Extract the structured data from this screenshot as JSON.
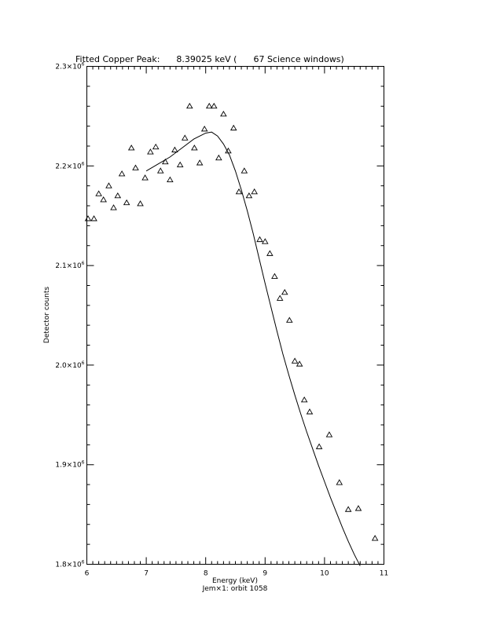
{
  "chart_data": {
    "type": "scatter",
    "title": "Fitted Copper Peak:      8.39025 keV (      67 Science windows)",
    "xlabel": "Energy (keV)",
    "ylabel": "Detector counts",
    "subtitle": "Jem×1: orbit 1058",
    "xlim": [
      6,
      11
    ],
    "ylim": [
      1800000,
      2300000
    ],
    "x_ticks": [
      {
        "value": 6,
        "label": "6"
      },
      {
        "value": 7,
        "label": "7"
      },
      {
        "value": 8,
        "label": "8"
      },
      {
        "value": 9,
        "label": "9"
      },
      {
        "value": 10,
        "label": "10"
      },
      {
        "value": 11,
        "label": "11"
      }
    ],
    "y_ticks": [
      {
        "value": 1800000,
        "mantissa": "1.8×10",
        "exponent": "6"
      },
      {
        "value": 1900000,
        "mantissa": "1.9×10",
        "exponent": "6"
      },
      {
        "value": 2000000,
        "mantissa": "2.0×10",
        "exponent": "6"
      },
      {
        "value": 2100000,
        "mantissa": "2.1×10",
        "exponent": "6"
      },
      {
        "value": 2200000,
        "mantissa": "2.2×10",
        "exponent": "6"
      },
      {
        "value": 2300000,
        "mantissa": "2.3×10",
        "exponent": "6"
      }
    ],
    "grid": false,
    "series": [
      {
        "marker": "triangle",
        "points": [
          [
            6.02,
            2147000
          ],
          [
            6.12,
            2147000
          ],
          [
            6.2,
            2172000
          ],
          [
            6.28,
            2166000
          ],
          [
            6.37,
            2180000
          ],
          [
            6.45,
            2158000
          ],
          [
            6.52,
            2170000
          ],
          [
            6.59,
            2192000
          ],
          [
            6.67,
            2163000
          ],
          [
            6.75,
            2218000
          ],
          [
            6.82,
            2198000
          ],
          [
            6.9,
            2162000
          ],
          [
            6.98,
            2188000
          ],
          [
            7.07,
            2214000
          ],
          [
            7.16,
            2219000
          ],
          [
            7.24,
            2195000
          ],
          [
            7.32,
            2204000
          ],
          [
            7.4,
            2186000
          ],
          [
            7.48,
            2216000
          ],
          [
            7.57,
            2201000
          ],
          [
            7.65,
            2228000
          ],
          [
            7.73,
            2260000
          ],
          [
            7.81,
            2218000
          ],
          [
            7.9,
            2203000
          ],
          [
            7.98,
            2237000
          ],
          [
            8.06,
            2260000
          ],
          [
            8.14,
            2260000
          ],
          [
            8.22,
            2208000
          ],
          [
            8.3,
            2252000
          ],
          [
            8.38,
            2215000
          ],
          [
            8.47,
            2238000
          ],
          [
            8.56,
            2174000
          ],
          [
            8.65,
            2195000
          ],
          [
            8.73,
            2170000
          ],
          [
            8.82,
            2174000
          ],
          [
            8.91,
            2126000
          ],
          [
            9.0,
            2124000
          ],
          [
            9.08,
            2112000
          ],
          [
            9.16,
            2089000
          ],
          [
            9.25,
            2067000
          ],
          [
            9.33,
            2073000
          ],
          [
            9.41,
            2045000
          ],
          [
            9.5,
            2004000
          ],
          [
            9.58,
            2001000
          ],
          [
            9.66,
            1965000
          ],
          [
            9.75,
            1953000
          ],
          [
            9.91,
            1918000
          ],
          [
            10.08,
            1930000
          ],
          [
            10.25,
            1882000
          ],
          [
            10.4,
            1855000
          ],
          [
            10.57,
            1856000
          ],
          [
            10.85,
            1826000
          ]
        ]
      },
      {
        "marker": "line",
        "points": [
          [
            7.0,
            2195000
          ],
          [
            7.2,
            2202000
          ],
          [
            7.4,
            2209000
          ],
          [
            7.6,
            2218000
          ],
          [
            7.8,
            2227000
          ],
          [
            8.0,
            2233000
          ],
          [
            8.1,
            2234000
          ],
          [
            8.2,
            2230000
          ],
          [
            8.3,
            2222000
          ],
          [
            8.4,
            2211000
          ],
          [
            8.5,
            2195000
          ],
          [
            8.6,
            2176000
          ],
          [
            8.7,
            2155000
          ],
          [
            8.8,
            2132000
          ],
          [
            8.9,
            2107000
          ],
          [
            9.0,
            2082000
          ],
          [
            9.1,
            2058000
          ],
          [
            9.2,
            2034000
          ],
          [
            9.3,
            2011000
          ],
          [
            9.4,
            1990000
          ],
          [
            9.5,
            1970000
          ],
          [
            9.6,
            1951000
          ],
          [
            9.7,
            1933000
          ],
          [
            9.8,
            1916000
          ],
          [
            9.9,
            1899000
          ],
          [
            10.0,
            1883000
          ],
          [
            10.1,
            1867000
          ],
          [
            10.2,
            1852000
          ],
          [
            10.3,
            1837000
          ],
          [
            10.4,
            1823000
          ],
          [
            10.5,
            1810000
          ],
          [
            10.56,
            1803000
          ],
          [
            10.6,
            1798000
          ],
          [
            10.7,
            1787000
          ],
          [
            10.8,
            1776000
          ],
          [
            10.9,
            1766000
          ],
          [
            11.0,
            1756000
          ]
        ]
      }
    ]
  }
}
